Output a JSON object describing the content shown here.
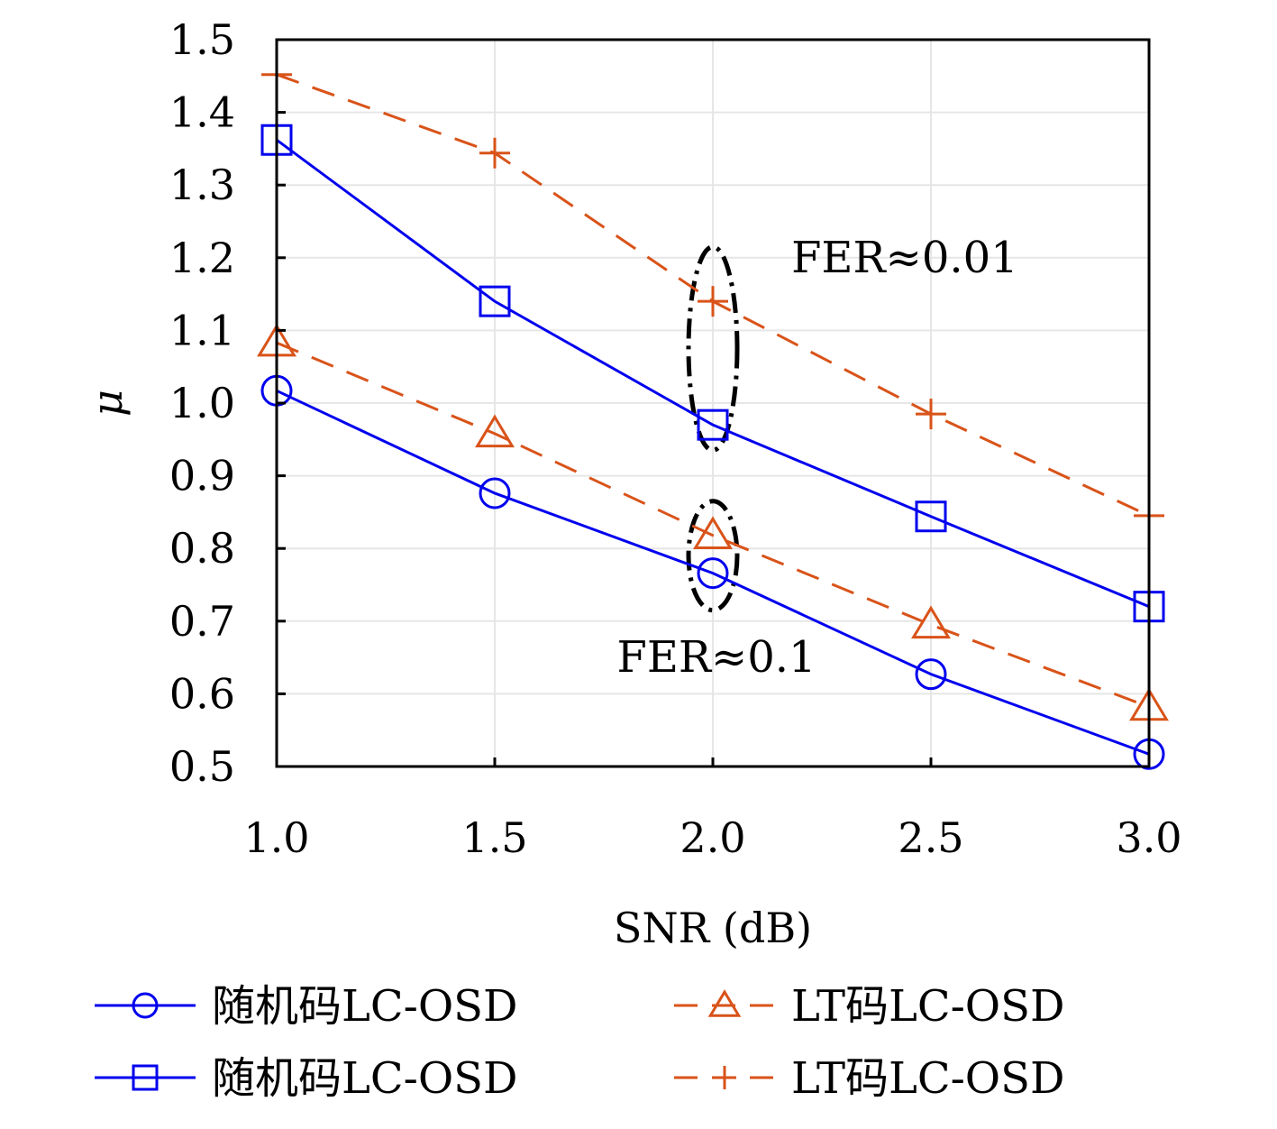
{
  "chart_data": {
    "type": "line",
    "xlabel": "SNR (dB)",
    "ylabel": "μ",
    "xlim": [
      1.0,
      3.0
    ],
    "ylim": [
      0.5,
      1.5
    ],
    "xticks": [
      "1.0",
      "1.5",
      "2.0",
      "2.5",
      "3.0"
    ],
    "yticks": [
      "0.5",
      "0.6",
      "0.7",
      "0.8",
      "0.9",
      "1.0",
      "1.1",
      "1.2",
      "1.3",
      "1.4",
      "1.5"
    ],
    "grid": true,
    "legend_position": "bottom",
    "x": [
      1.0,
      1.5,
      2.0,
      2.5,
      3.0
    ],
    "series": [
      {
        "name": "随机码LC-OSD",
        "marker": "circle",
        "line": "solid",
        "color": "#0000ee",
        "values": [
          1.017,
          0.876,
          0.766,
          0.627,
          0.517
        ]
      },
      {
        "name": "随机码LC-OSD",
        "marker": "square",
        "line": "solid",
        "color": "#0000ee",
        "values": [
          1.362,
          1.14,
          0.97,
          0.844,
          0.72
        ]
      },
      {
        "name": "LT码LC-OSD",
        "marker": "triangle",
        "line": "dashed",
        "color": "#d95319",
        "values": [
          1.083,
          0.958,
          0.818,
          0.695,
          0.582
        ]
      },
      {
        "name": "LT码LC-OSD",
        "marker": "plus",
        "line": "dashed",
        "color": "#d95319",
        "values": [
          1.452,
          1.344,
          1.14,
          0.985,
          0.845
        ]
      }
    ],
    "annotations": [
      {
        "text": "FER≈0.01",
        "x": 2.18,
        "y": 1.2
      },
      {
        "text": "FER≈0.1",
        "x": 1.78,
        "y": 0.65
      }
    ]
  }
}
